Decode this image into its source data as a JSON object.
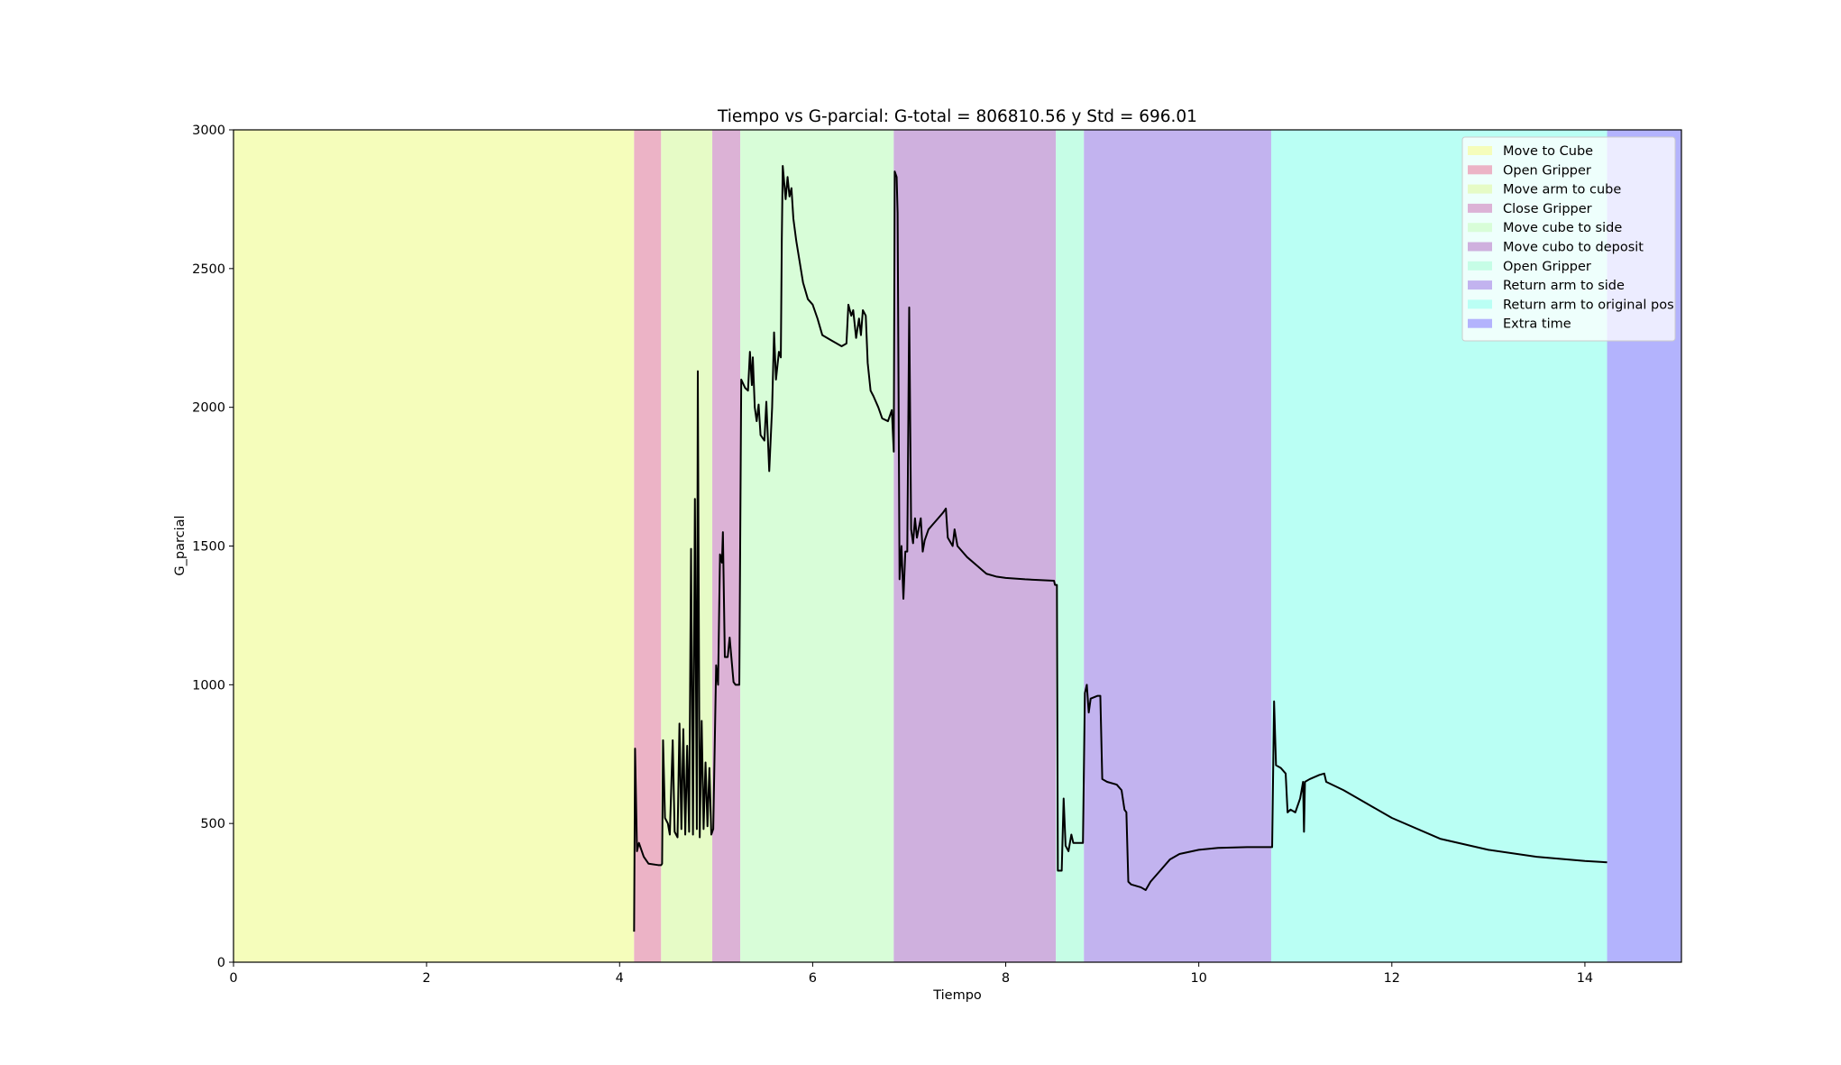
{
  "chart_data": {
    "type": "line",
    "title": "Tiempo vs G-parcial: G-total = 806810.56 y Std = 696.01",
    "xlabel": "Tiempo",
    "ylabel": "G_parcial",
    "xlim": [
      0,
      15
    ],
    "ylim": [
      0,
      3000
    ],
    "xticks": [
      0,
      2,
      4,
      6,
      8,
      10,
      12,
      14
    ],
    "yticks": [
      0,
      500,
      1000,
      1500,
      2000,
      2500,
      3000
    ],
    "legend": "upper right",
    "color": "#000000",
    "spans": [
      {
        "name": "Move to Cube",
        "start": 0,
        "end": 4.15,
        "color": "#f5fdbb"
      },
      {
        "name": "Open Gripper",
        "start": 4.15,
        "end": 4.43,
        "color": "#ecb3c6"
      },
      {
        "name": "Move arm to cube",
        "start": 4.43,
        "end": 4.96,
        "color": "#e6fbc6"
      },
      {
        "name": "Close Gripper",
        "start": 4.96,
        "end": 5.25,
        "color": "#dcb2d6"
      },
      {
        "name": "Move cube to side",
        "start": 5.25,
        "end": 6.84,
        "color": "#d8fdd8"
      },
      {
        "name": "Move cubo to deposit",
        "start": 6.84,
        "end": 8.52,
        "color": "#cfb0de"
      },
      {
        "name": "Open Gripper",
        "start": 8.52,
        "end": 8.81,
        "color": "#c6fde6"
      },
      {
        "name": "Return arm to side",
        "start": 8.81,
        "end": 10.75,
        "color": "#c2b3ef"
      },
      {
        "name": "Return arm to original pos",
        "start": 10.75,
        "end": 14.23,
        "color": "#bafff4"
      },
      {
        "name": "Extra time",
        "start": 14.23,
        "end": 15,
        "color": "#b3b3fd"
      }
    ],
    "x": [
      4.15,
      4.16,
      4.18,
      4.2,
      4.25,
      4.3,
      4.4,
      4.43,
      4.44,
      4.45,
      4.47,
      4.5,
      4.52,
      4.55,
      4.57,
      4.6,
      4.62,
      4.64,
      4.66,
      4.68,
      4.7,
      4.72,
      4.74,
      4.76,
      4.78,
      4.8,
      4.81,
      4.83,
      4.85,
      4.87,
      4.89,
      4.91,
      4.93,
      4.95,
      4.97,
      5.0,
      5.02,
      5.04,
      5.06,
      5.07,
      5.09,
      5.12,
      5.14,
      5.16,
      5.18,
      5.2,
      5.24,
      5.26,
      5.3,
      5.33,
      5.35,
      5.37,
      5.38,
      5.4,
      5.42,
      5.44,
      5.46,
      5.5,
      5.52,
      5.55,
      5.58,
      5.6,
      5.62,
      5.65,
      5.67,
      5.68,
      5.69,
      5.72,
      5.74,
      5.76,
      5.78,
      5.8,
      5.83,
      5.9,
      5.95,
      6.0,
      6.05,
      6.1,
      6.2,
      6.3,
      6.35,
      6.37,
      6.4,
      6.42,
      6.45,
      6.48,
      6.5,
      6.52,
      6.55,
      6.57,
      6.6,
      6.63,
      6.68,
      6.72,
      6.78,
      6.82,
      6.84,
      6.85,
      6.87,
      6.88,
      6.9,
      6.92,
      6.94,
      6.96,
      6.98,
      7.0,
      7.02,
      7.04,
      7.06,
      7.08,
      7.12,
      7.14,
      7.16,
      7.2,
      7.25,
      7.3,
      7.35,
      7.38,
      7.4,
      7.45,
      7.47,
      7.5,
      7.6,
      7.7,
      7.8,
      7.9,
      8.0,
      8.2,
      8.5,
      8.51,
      8.53,
      8.54,
      8.58,
      8.6,
      8.62,
      8.65,
      8.68,
      8.7,
      8.75,
      8.8,
      8.82,
      8.84,
      8.86,
      8.88,
      8.95,
      8.98,
      9.0,
      9.05,
      9.15,
      9.2,
      9.23,
      9.25,
      9.27,
      9.3,
      9.4,
      9.45,
      9.5,
      9.6,
      9.7,
      9.8,
      10.0,
      10.2,
      10.5,
      10.76,
      10.78,
      10.8,
      10.85,
      10.9,
      10.92,
      10.95,
      11.0,
      11.05,
      11.08,
      11.09,
      11.1,
      11.15,
      11.25,
      11.3,
      11.32,
      11.5,
      11.8,
      12.0,
      12.5,
      13.0,
      13.5,
      14.0,
      14.23
    ],
    "values": [
      110,
      770,
      400,
      430,
      380,
      355,
      350,
      350,
      355,
      800,
      520,
      500,
      460,
      800,
      470,
      450,
      860,
      480,
      840,
      460,
      780,
      470,
      1490,
      460,
      1670,
      480,
      2130,
      450,
      870,
      480,
      720,
      490,
      700,
      460,
      480,
      1070,
      1000,
      1470,
      1440,
      1550,
      1100,
      1100,
      1170,
      1090,
      1010,
      1000,
      1000,
      2100,
      2070,
      2060,
      2200,
      2080,
      2180,
      2000,
      1950,
      2010,
      1900,
      1880,
      2020,
      1770,
      2000,
      2270,
      2100,
      2200,
      2180,
      2600,
      2870,
      2750,
      2830,
      2760,
      2790,
      2680,
      2600,
      2450,
      2390,
      2370,
      2320,
      2260,
      2240,
      2220,
      2230,
      2370,
      2330,
      2350,
      2250,
      2320,
      2260,
      2350,
      2330,
      2160,
      2060,
      2040,
      2000,
      1960,
      1950,
      1990,
      1840,
      2850,
      2830,
      2700,
      1380,
      1500,
      1310,
      1480,
      1480,
      2360,
      1560,
      1510,
      1600,
      1530,
      1600,
      1480,
      1520,
      1560,
      1580,
      1600,
      1620,
      1635,
      1530,
      1500,
      1560,
      1500,
      1460,
      1430,
      1400,
      1390,
      1385,
      1380,
      1375,
      1360,
      1360,
      330,
      330,
      590,
      420,
      400,
      460,
      430,
      430,
      430,
      970,
      1000,
      900,
      950,
      960,
      960,
      660,
      650,
      640,
      620,
      550,
      540,
      290,
      280,
      270,
      260,
      290,
      330,
      370,
      390,
      405,
      412,
      415,
      415,
      940,
      710,
      700,
      680,
      540,
      550,
      540,
      590,
      650,
      470,
      650,
      660,
      675,
      680,
      650,
      620,
      560,
      520,
      445,
      405,
      380,
      365,
      360
    ]
  }
}
